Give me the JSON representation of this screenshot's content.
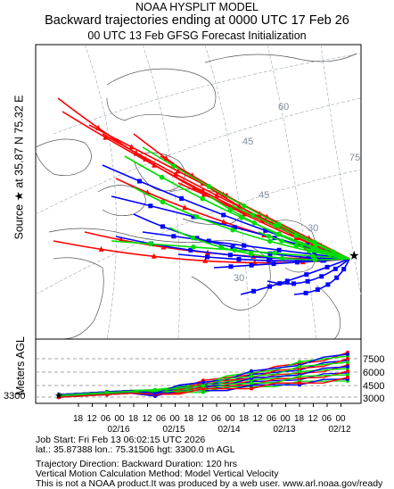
{
  "header": {
    "line1": "NOAA HYSPLIT MODEL",
    "line2": "Backward trajectories ending at 0000 UTC 17 Feb 26",
    "line3": "00 UTC 13 Feb    GFSG  Forecast Initialization"
  },
  "side_label": "Source ★ at   35.87 N   75.32 E",
  "map": {
    "lat_labels": [
      "60",
      "45",
      "45",
      "30",
      "30",
      "75"
    ],
    "source": {
      "lat": 35.87,
      "lon": 75.32
    },
    "series_colors": {
      "red": "#ff0000",
      "blue": "#0000ff",
      "green": "#00dd00"
    }
  },
  "height_panel": {
    "ylabel": "Meters AGL",
    "start_height_label": "3300",
    "y_ticks": [
      "7500",
      "6000",
      "4500",
      "3000"
    ],
    "x_time_ticks": [
      "18",
      "12",
      "06",
      "00",
      "18",
      "12",
      "06",
      "00",
      "18",
      "12",
      "06",
      "00",
      "18",
      "12",
      "06",
      "00",
      "18",
      "12",
      "06",
      "00"
    ],
    "x_date_labels": [
      "02/16",
      "02/15",
      "02/14",
      "02/13",
      "02/12"
    ]
  },
  "footer": {
    "job_start": "Job Start: Fri Feb 13 06:02:15 UTC 2026",
    "location": "lat.: 35.87388   lon.: 75.31506   hgt: 3300.0 m AGL",
    "direction": "Trajectory Direction: Backward      Duration: 120 hrs",
    "vertical": "Vertical Motion Calculation Method: Model Vertical Velocity",
    "disclaimer": "This is not a NOAA product.It was produced by a web user. www.arl.noaa.gov/ready"
  }
}
